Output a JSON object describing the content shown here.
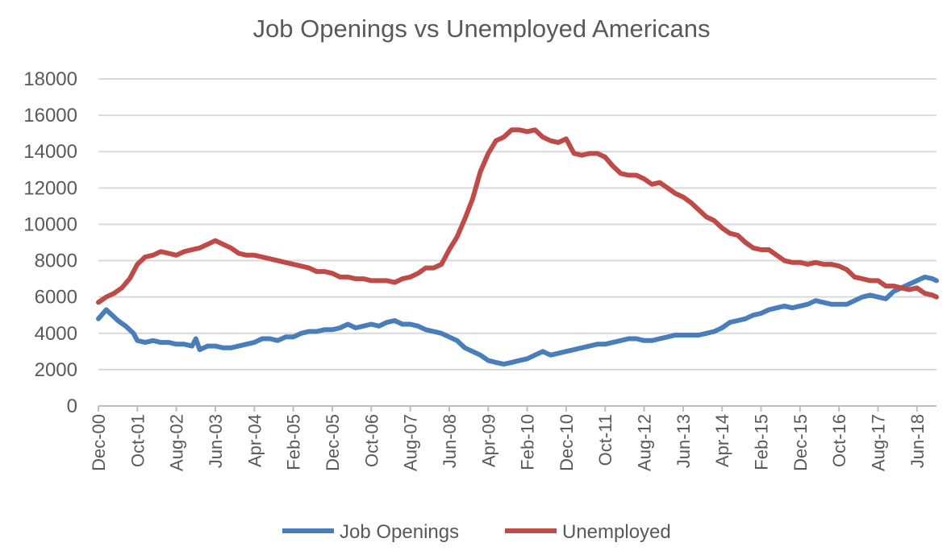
{
  "chart_data": {
    "type": "line",
    "title": "Job Openings vs Unemployed Americans",
    "xlabel": "",
    "ylabel": "",
    "ylim": [
      0,
      18000
    ],
    "yticks": [
      0,
      2000,
      4000,
      6000,
      8000,
      10000,
      12000,
      14000,
      16000,
      18000
    ],
    "xtick_labels": [
      "Dec-00",
      "Oct-01",
      "Aug-02",
      "Jun-03",
      "Apr-04",
      "Feb-05",
      "Dec-05",
      "Oct-06",
      "Aug-07",
      "Jun-08",
      "Apr-09",
      "Feb-10",
      "Dec-10",
      "Oct-11",
      "Aug-12",
      "Jun-13",
      "Apr-14",
      "Feb-15",
      "Dec-15",
      "Oct-16",
      "Aug-17",
      "Jun-18"
    ],
    "x_start": "Dec-00",
    "x_end": "Nov-18",
    "grid": true,
    "legend_position": "bottom",
    "series": [
      {
        "name": "Job Openings",
        "color": "#4a7ebb",
        "points": [
          [
            "Dec-00",
            4800
          ],
          [
            "Feb-01",
            5300
          ],
          [
            "May-01",
            4700
          ],
          [
            "Jul-01",
            4400
          ],
          [
            "Sep-01",
            4000
          ],
          [
            "Oct-01",
            3600
          ],
          [
            "Dec-01",
            3500
          ],
          [
            "Feb-02",
            3600
          ],
          [
            "Apr-02",
            3500
          ],
          [
            "Jun-02",
            3500
          ],
          [
            "Aug-02",
            3400
          ],
          [
            "Oct-02",
            3400
          ],
          [
            "Dec-02",
            3300
          ],
          [
            "Jan-03",
            3700
          ],
          [
            "Feb-03",
            3100
          ],
          [
            "Apr-03",
            3300
          ],
          [
            "Jun-03",
            3300
          ],
          [
            "Aug-03",
            3200
          ],
          [
            "Oct-03",
            3200
          ],
          [
            "Dec-03",
            3300
          ],
          [
            "Feb-04",
            3400
          ],
          [
            "Apr-04",
            3500
          ],
          [
            "Jun-04",
            3700
          ],
          [
            "Aug-04",
            3700
          ],
          [
            "Oct-04",
            3600
          ],
          [
            "Dec-04",
            3800
          ],
          [
            "Feb-05",
            3800
          ],
          [
            "Apr-05",
            4000
          ],
          [
            "Jun-05",
            4100
          ],
          [
            "Aug-05",
            4100
          ],
          [
            "Oct-05",
            4200
          ],
          [
            "Dec-05",
            4200
          ],
          [
            "Feb-06",
            4300
          ],
          [
            "Apr-06",
            4500
          ],
          [
            "Jun-06",
            4300
          ],
          [
            "Aug-06",
            4400
          ],
          [
            "Oct-06",
            4500
          ],
          [
            "Dec-06",
            4400
          ],
          [
            "Feb-07",
            4600
          ],
          [
            "Apr-07",
            4700
          ],
          [
            "Jun-07",
            4500
          ],
          [
            "Aug-07",
            4500
          ],
          [
            "Oct-07",
            4400
          ],
          [
            "Dec-07",
            4200
          ],
          [
            "Feb-08",
            4100
          ],
          [
            "Apr-08",
            4000
          ],
          [
            "Jun-08",
            3800
          ],
          [
            "Aug-08",
            3600
          ],
          [
            "Oct-08",
            3200
          ],
          [
            "Dec-08",
            3000
          ],
          [
            "Feb-09",
            2800
          ],
          [
            "Apr-09",
            2500
          ],
          [
            "Jun-09",
            2400
          ],
          [
            "Aug-09",
            2300
          ],
          [
            "Oct-09",
            2400
          ],
          [
            "Dec-09",
            2500
          ],
          [
            "Feb-10",
            2600
          ],
          [
            "Apr-10",
            2800
          ],
          [
            "Jun-10",
            3000
          ],
          [
            "Aug-10",
            2800
          ],
          [
            "Oct-10",
            2900
          ],
          [
            "Dec-10",
            3000
          ],
          [
            "Feb-11",
            3100
          ],
          [
            "Apr-11",
            3200
          ],
          [
            "Jun-11",
            3300
          ],
          [
            "Aug-11",
            3400
          ],
          [
            "Oct-11",
            3400
          ],
          [
            "Dec-11",
            3500
          ],
          [
            "Feb-12",
            3600
          ],
          [
            "Apr-12",
            3700
          ],
          [
            "Jun-12",
            3700
          ],
          [
            "Aug-12",
            3600
          ],
          [
            "Oct-12",
            3600
          ],
          [
            "Dec-12",
            3700
          ],
          [
            "Feb-13",
            3800
          ],
          [
            "Apr-13",
            3900
          ],
          [
            "Jun-13",
            3900
          ],
          [
            "Aug-13",
            3900
          ],
          [
            "Oct-13",
            3900
          ],
          [
            "Dec-13",
            4000
          ],
          [
            "Feb-14",
            4100
          ],
          [
            "Apr-14",
            4300
          ],
          [
            "Jun-14",
            4600
          ],
          [
            "Aug-14",
            4700
          ],
          [
            "Oct-14",
            4800
          ],
          [
            "Dec-14",
            5000
          ],
          [
            "Feb-15",
            5100
          ],
          [
            "Apr-15",
            5300
          ],
          [
            "Jun-15",
            5400
          ],
          [
            "Aug-15",
            5500
          ],
          [
            "Oct-15",
            5400
          ],
          [
            "Dec-15",
            5500
          ],
          [
            "Feb-16",
            5600
          ],
          [
            "Apr-16",
            5800
          ],
          [
            "Jun-16",
            5700
          ],
          [
            "Aug-16",
            5600
          ],
          [
            "Oct-16",
            5600
          ],
          [
            "Dec-16",
            5600
          ],
          [
            "Feb-17",
            5800
          ],
          [
            "Apr-17",
            6000
          ],
          [
            "Jun-17",
            6100
          ],
          [
            "Aug-17",
            6000
          ],
          [
            "Oct-17",
            5900
          ],
          [
            "Dec-17",
            6300
          ],
          [
            "Feb-18",
            6500
          ],
          [
            "Apr-18",
            6700
          ],
          [
            "Jun-18",
            6900
          ],
          [
            "Aug-18",
            7100
          ],
          [
            "Oct-18",
            7000
          ],
          [
            "Nov-18",
            6900
          ]
        ]
      },
      {
        "name": "Unemployed",
        "color": "#be4b48",
        "points": [
          [
            "Dec-00",
            5700
          ],
          [
            "Feb-01",
            6000
          ],
          [
            "Apr-01",
            6200
          ],
          [
            "Jun-01",
            6500
          ],
          [
            "Aug-01",
            7000
          ],
          [
            "Oct-01",
            7800
          ],
          [
            "Dec-01",
            8200
          ],
          [
            "Feb-02",
            8300
          ],
          [
            "Apr-02",
            8500
          ],
          [
            "Jun-02",
            8400
          ],
          [
            "Aug-02",
            8300
          ],
          [
            "Oct-02",
            8500
          ],
          [
            "Dec-02",
            8600
          ],
          [
            "Feb-03",
            8700
          ],
          [
            "Apr-03",
            8900
          ],
          [
            "Jun-03",
            9100
          ],
          [
            "Aug-03",
            8900
          ],
          [
            "Oct-03",
            8700
          ],
          [
            "Dec-03",
            8400
          ],
          [
            "Feb-04",
            8300
          ],
          [
            "Apr-04",
            8300
          ],
          [
            "Jun-04",
            8200
          ],
          [
            "Aug-04",
            8100
          ],
          [
            "Oct-04",
            8000
          ],
          [
            "Dec-04",
            7900
          ],
          [
            "Feb-05",
            7800
          ],
          [
            "Apr-05",
            7700
          ],
          [
            "Jun-05",
            7600
          ],
          [
            "Aug-05",
            7400
          ],
          [
            "Oct-05",
            7400
          ],
          [
            "Dec-05",
            7300
          ],
          [
            "Feb-06",
            7100
          ],
          [
            "Apr-06",
            7100
          ],
          [
            "Jun-06",
            7000
          ],
          [
            "Aug-06",
            7000
          ],
          [
            "Oct-06",
            6900
          ],
          [
            "Dec-06",
            6900
          ],
          [
            "Feb-07",
            6900
          ],
          [
            "Apr-07",
            6800
          ],
          [
            "Jun-07",
            7000
          ],
          [
            "Aug-07",
            7100
          ],
          [
            "Oct-07",
            7300
          ],
          [
            "Dec-07",
            7600
          ],
          [
            "Feb-08",
            7600
          ],
          [
            "Apr-08",
            7800
          ],
          [
            "Jun-08",
            8600
          ],
          [
            "Aug-08",
            9300
          ],
          [
            "Oct-08",
            10300
          ],
          [
            "Dec-08",
            11400
          ],
          [
            "Feb-09",
            12900
          ],
          [
            "Apr-09",
            13900
          ],
          [
            "Jun-09",
            14600
          ],
          [
            "Aug-09",
            14800
          ],
          [
            "Oct-09",
            15200
          ],
          [
            "Dec-09",
            15200
          ],
          [
            "Feb-10",
            15100
          ],
          [
            "Apr-10",
            15200
          ],
          [
            "Jun-10",
            14800
          ],
          [
            "Aug-10",
            14600
          ],
          [
            "Oct-10",
            14500
          ],
          [
            "Dec-10",
            14700
          ],
          [
            "Feb-11",
            13900
          ],
          [
            "Apr-11",
            13800
          ],
          [
            "Jun-11",
            13900
          ],
          [
            "Aug-11",
            13900
          ],
          [
            "Oct-11",
            13700
          ],
          [
            "Dec-11",
            13200
          ],
          [
            "Feb-12",
            12800
          ],
          [
            "Apr-12",
            12700
          ],
          [
            "Jun-12",
            12700
          ],
          [
            "Aug-12",
            12500
          ],
          [
            "Oct-12",
            12200
          ],
          [
            "Dec-12",
            12300
          ],
          [
            "Feb-13",
            12000
          ],
          [
            "Apr-13",
            11700
          ],
          [
            "Jun-13",
            11500
          ],
          [
            "Aug-13",
            11200
          ],
          [
            "Oct-13",
            10800
          ],
          [
            "Dec-13",
            10400
          ],
          [
            "Feb-14",
            10200
          ],
          [
            "Apr-14",
            9800
          ],
          [
            "Jun-14",
            9500
          ],
          [
            "Aug-14",
            9400
          ],
          [
            "Oct-14",
            9000
          ],
          [
            "Dec-14",
            8700
          ],
          [
            "Feb-15",
            8600
          ],
          [
            "Apr-15",
            8600
          ],
          [
            "Jun-15",
            8300
          ],
          [
            "Aug-15",
            8000
          ],
          [
            "Oct-15",
            7900
          ],
          [
            "Dec-15",
            7900
          ],
          [
            "Feb-16",
            7800
          ],
          [
            "Apr-16",
            7900
          ],
          [
            "Jun-16",
            7800
          ],
          [
            "Aug-16",
            7800
          ],
          [
            "Oct-16",
            7700
          ],
          [
            "Dec-16",
            7500
          ],
          [
            "Feb-17",
            7100
          ],
          [
            "Apr-17",
            7000
          ],
          [
            "Jun-17",
            6900
          ],
          [
            "Aug-17",
            6900
          ],
          [
            "Oct-17",
            6600
          ],
          [
            "Dec-17",
            6600
          ],
          [
            "Feb-18",
            6500
          ],
          [
            "Apr-18",
            6400
          ],
          [
            "Jun-18",
            6500
          ],
          [
            "Aug-18",
            6200
          ],
          [
            "Oct-18",
            6100
          ],
          [
            "Nov-18",
            6000
          ]
        ]
      }
    ]
  }
}
